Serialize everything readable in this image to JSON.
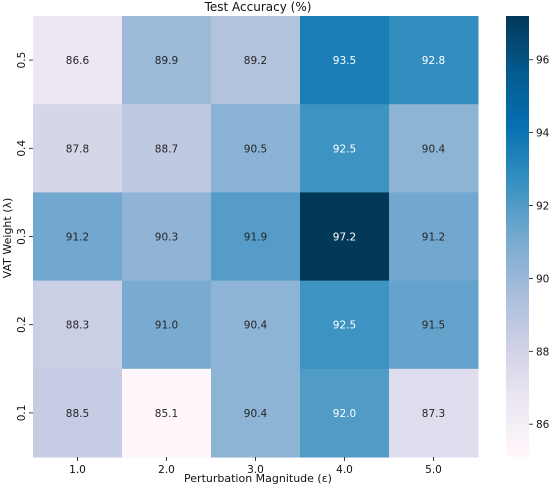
{
  "chart_data": {
    "type": "heatmap",
    "title": "Test Accuracy (%)",
    "xlabel": "Perturbation Magnitude (ε)",
    "ylabel": "VAT Weight (λ)",
    "x_categories": [
      "1.0",
      "2.0",
      "3.0",
      "4.0",
      "5.0"
    ],
    "y_categories": [
      "0.5",
      "0.4",
      "0.3",
      "0.2",
      "0.1"
    ],
    "values": [
      [
        86.6,
        89.9,
        89.2,
        93.5,
        92.8
      ],
      [
        87.8,
        88.7,
        90.5,
        92.5,
        90.4
      ],
      [
        91.2,
        90.3,
        91.9,
        97.2,
        91.2
      ],
      [
        88.3,
        91.0,
        90.4,
        92.5,
        91.5
      ],
      [
        88.5,
        85.1,
        90.4,
        92.0,
        87.3
      ]
    ],
    "value_labels": [
      [
        "86.6",
        "89.9",
        "89.2",
        "93.5",
        "92.8"
      ],
      [
        "87.8",
        "88.7",
        "90.5",
        "92.5",
        "90.4"
      ],
      [
        "91.2",
        "90.3",
        "91.9",
        "97.2",
        "91.2"
      ],
      [
        "88.3",
        "91.0",
        "90.4",
        "92.5",
        "91.5"
      ],
      [
        "88.5",
        "85.1",
        "90.4",
        "92.0",
        "87.3"
      ]
    ],
    "colorbar": {
      "vmin": 85.1,
      "vmax": 97.2,
      "ticks": [
        86,
        88,
        90,
        92,
        94,
        96
      ],
      "tick_labels": [
        "86",
        "88",
        "90",
        "92",
        "94",
        "96"
      ],
      "colormap": "PuBu",
      "colormap_stops": [
        "#fff7fb",
        "#ece7f2",
        "#d0d1e6",
        "#a6bddb",
        "#74a9cf",
        "#3690c0",
        "#0570b0",
        "#045a8d",
        "#023858"
      ]
    },
    "annotation_text_colors": {
      "light_bg": "#262626",
      "dark_bg": "#ffffff"
    }
  }
}
